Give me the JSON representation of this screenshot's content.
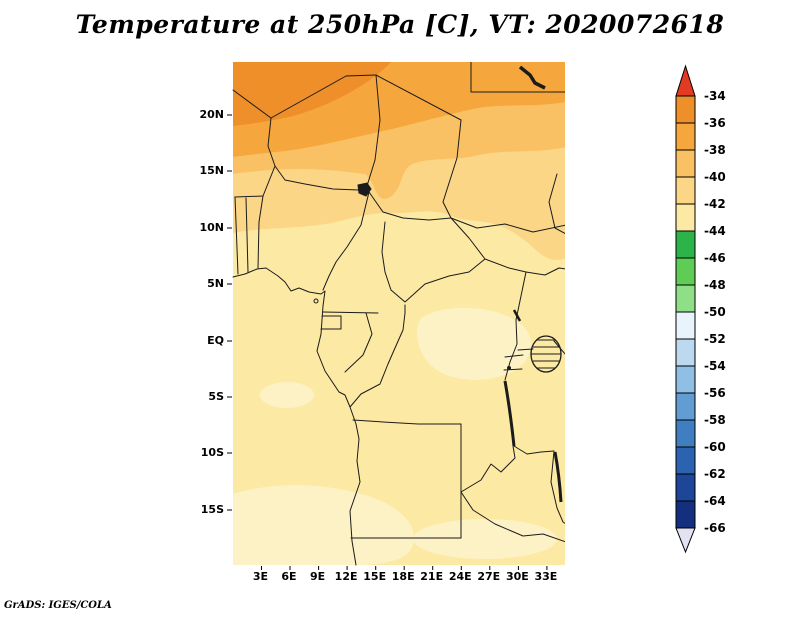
{
  "title": "Temperature at 250hPa [C], VT: 2020072618",
  "credit": "GrADS: IGES/COLA",
  "axes": {
    "lat_labels": [
      "20N",
      "15N",
      "10N",
      "5N",
      "EQ",
      "5S",
      "10S",
      "15S"
    ],
    "lon_labels": [
      "3E",
      "6E",
      "9E",
      "12E",
      "15E",
      "18E",
      "21E",
      "24E",
      "27E",
      "30E",
      "33E"
    ]
  },
  "colorbar": {
    "labels": [
      "-34",
      "-36",
      "-38",
      "-40",
      "-42",
      "-44",
      "-46",
      "-48",
      "-50",
      "-52",
      "-54",
      "-56",
      "-58",
      "-60",
      "-62",
      "-64",
      "-66"
    ],
    "segment_colors": [
      "#ef8f2a",
      "#f5a73e",
      "#f9c163",
      "#fbd687",
      "#fce9a4",
      "#2cb34a",
      "#5ecc55",
      "#8fdf86",
      "#e9f3fb",
      "#bcd9ef",
      "#8fbfe4",
      "#619dd3",
      "#3f7fc1",
      "#2c63b0",
      "#1d4699",
      "#132f7e"
    ],
    "arrow_top_color": "#e23b23",
    "arrow_bottom_color": "#e2e2f2"
  },
  "map_extras": {
    "lightest_yellow": "#fdf2c6",
    "border_color": "#1b1b1b"
  },
  "chart_data": {
    "type": "heatmap",
    "title": "Temperature at 250hPa [C], VT: 2020072618",
    "variable": "Temperature",
    "level": "250hPa",
    "units": "C",
    "valid_time": "2020072618",
    "region": "Central Africa",
    "x_ticks": [
      "3E",
      "6E",
      "9E",
      "12E",
      "15E",
      "18E",
      "21E",
      "24E",
      "27E",
      "30E",
      "33E"
    ],
    "y_ticks": [
      "20N",
      "15N",
      "10N",
      "5N",
      "EQ",
      "5S",
      "10S",
      "15S"
    ],
    "lon_range": [
      "0E",
      "35E"
    ],
    "lat_range": [
      "20S",
      "25N"
    ],
    "colorbar": {
      "min": -66,
      "max": -34,
      "interval": 2,
      "tick_labels": [
        -34,
        -36,
        -38,
        -40,
        -42,
        -44,
        -46,
        -48,
        -50,
        -52,
        -54,
        -56,
        -58,
        -60,
        -62,
        -64,
        -66
      ],
      "colors_top_to_bottom": [
        "#ef8f2a",
        "#f5a73e",
        "#f9c163",
        "#fbd687",
        "#fce9a4",
        "#2cb34a",
        "#5ecc55",
        "#8fdf86",
        "#e9f3fb",
        "#bcd9ef",
        "#8fbfe4",
        "#619dd3",
        "#3f7fc1",
        "#2c63b0",
        "#1d4699",
        "#132f7e"
      ],
      "above_max_arrow_color": "#e23b23",
      "below_min_arrow_color": "#e2e2f2",
      "position": "right"
    },
    "field_bands_by_latitude": [
      {
        "lat_band": "23N to 25N (northwest corner)",
        "temp_C": "-34 to -36"
      },
      {
        "lat_band": "19N to 24N",
        "temp_C": "-36 to -38"
      },
      {
        "lat_band": "14N to 19N",
        "temp_C": "-38 to -40"
      },
      {
        "lat_band": "9N to 14N",
        "temp_C": "-40 to -42"
      },
      {
        "lat_band": "20S to 9N",
        "temp_C": "-42 to -44"
      }
    ],
    "notes": "Warmest (orange) 250hPa temperatures over the Sahara in the north, grading to pale-yellow -42 to -44 C over equatorial and southern Africa; no green or blue (colder) values appear on the map. Country borders and lakes (Chad, Nasser, Victoria, Tanganyika, Malawi) drawn over shading."
  }
}
